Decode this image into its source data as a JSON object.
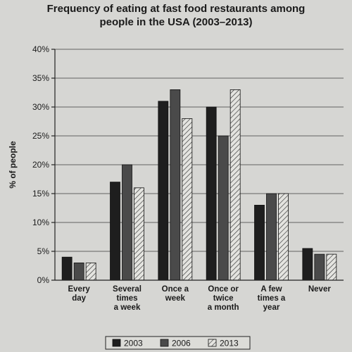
{
  "chart_data": {
    "type": "bar",
    "title_lines": [
      "Frequency of eating at fast food restaurants among",
      "people in the USA (2003–2013)"
    ],
    "ylabel": "% of people",
    "xlabel": "",
    "ylim": [
      0,
      40
    ],
    "y_ticks": [
      0,
      5,
      10,
      15,
      20,
      25,
      30,
      35,
      40
    ],
    "y_tick_labels": [
      "0%",
      "5%",
      "10%",
      "15%",
      "20%",
      "25%",
      "30%",
      "35%",
      "40%"
    ],
    "categories": [
      [
        "Every",
        "day"
      ],
      [
        "Several",
        "times",
        "a week"
      ],
      [
        "Once a",
        "week"
      ],
      [
        "Once or",
        "twice",
        "a month"
      ],
      [
        "A few",
        "times a",
        "year"
      ],
      [
        "Never"
      ]
    ],
    "series": [
      {
        "name": "2003",
        "fill": "#1e1e1e",
        "pattern": "solid",
        "values": [
          4,
          17,
          31,
          30,
          13,
          5.5
        ]
      },
      {
        "name": "2006",
        "fill": "#4a4a4a",
        "pattern": "solid",
        "values": [
          3,
          20,
          33,
          25,
          15,
          4.5
        ]
      },
      {
        "name": "2013",
        "fill": "#e4e4e0",
        "pattern": "hatch",
        "values": [
          3,
          16,
          28,
          33,
          15,
          4.5
        ]
      }
    ],
    "grid": true,
    "legend": "bottom-center"
  }
}
